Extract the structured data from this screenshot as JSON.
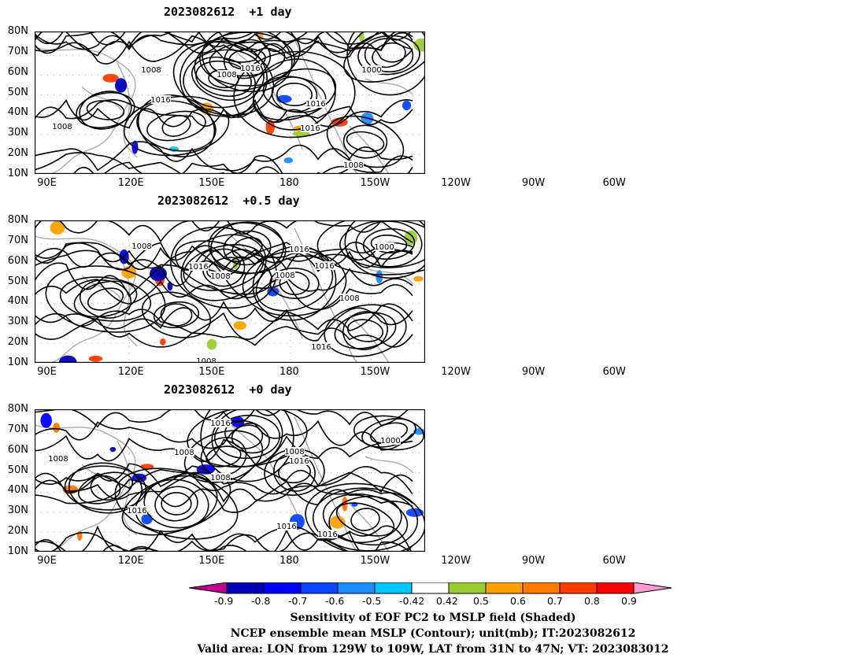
{
  "panels": [
    {
      "title": "2023082612  +1 day"
    },
    {
      "title": "2023082612  +0.5 day"
    },
    {
      "title": "2023082612  +0 day"
    }
  ],
  "lat_ticks": [
    "80N",
    "70N",
    "60N",
    "50N",
    "40N",
    "30N",
    "20N",
    "10N"
  ],
  "lon_ticks": [
    "90E",
    "120E",
    "150E",
    "180",
    "150W",
    "120W",
    "90W",
    "60W"
  ],
  "contour_labels": {
    "p1": [
      "1008",
      "1008",
      "1016",
      "1008",
      "1016",
      "1000",
      "1016",
      "1016",
      "1008"
    ],
    "p2": [
      "1008",
      "1016",
      "1008",
      "1016",
      "1008",
      "1000",
      "1016",
      "1008",
      "1016",
      "1008"
    ],
    "p3": [
      "1016",
      "1008",
      "1016",
      "1008",
      "1008",
      "1016",
      "1000",
      "1008",
      "1016",
      "1016"
    ]
  },
  "colorbar": {
    "ticks": [
      "-0.9",
      "-0.8",
      "-0.7",
      "-0.6",
      "-0.5",
      "-0.42",
      "0.42",
      "0.5",
      "0.6",
      "0.7",
      "0.8",
      "0.9"
    ],
    "colors": [
      "#c0008c",
      "#0000b4",
      "#0000ff",
      "#0a46ff",
      "#1e8cff",
      "#00c8ff",
      "#ffffff",
      "#9acd32",
      "#ffa000",
      "#ff7800",
      "#ff3c00",
      "#ff0000",
      "#ff9bd2"
    ]
  },
  "caption": {
    "line1": "Sensitivity of EOF PC2 to MSLP field (Shaded)",
    "line2": "NCEP ensemble mean MSLP (Contour); unit(mb); IT:2023082612",
    "line3": "Valid area: LON from 129W to 109W, LAT from 31N to 47N; VT: 2023083012"
  }
}
